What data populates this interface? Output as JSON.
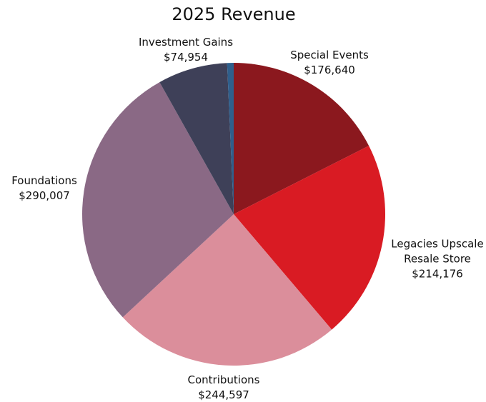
{
  "chart_data": {
    "type": "pie",
    "title": "2025 Revenue",
    "categories": [
      "Special Events",
      "Legacies Upscale Resale Store",
      "Contributions",
      "Foundations",
      "Investment Gains",
      null
    ],
    "values": [
      176640,
      214176,
      244597,
      290007,
      74954,
      7000
    ],
    "value_labels": [
      "$176,640",
      "$214,176",
      "$244,597",
      "$290,007",
      "$74,954",
      null
    ],
    "colors": [
      "#8b181e",
      "#d91b23",
      "#db8e9b",
      "#8a6985",
      "#3e4058",
      "#2f5f8c"
    ]
  }
}
